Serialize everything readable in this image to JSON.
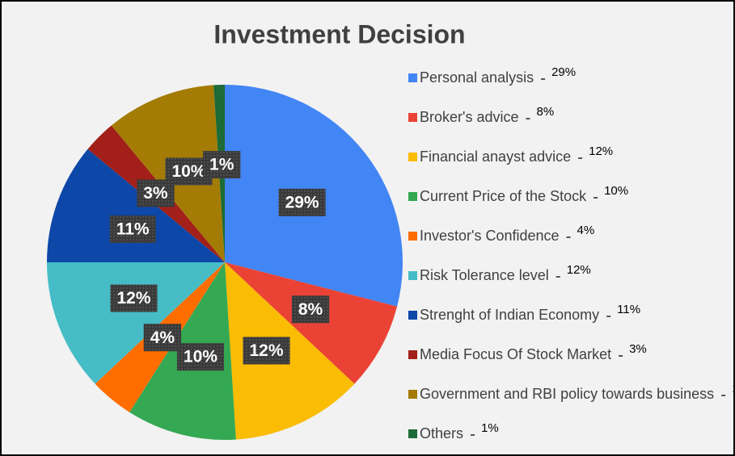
{
  "chart_data": {
    "type": "pie",
    "title": "Investment Decision",
    "categories": [
      "Personal analysis",
      "Broker's advice",
      "Financial anayst advice",
      "Current Price of the Stock",
      "Investor's Confidence",
      "Risk Tolerance level",
      "Strenght of Indian Economy",
      "Media Focus Of Stock Market",
      "Government and RBI policy towards business",
      "Others"
    ],
    "values": [
      29,
      8,
      12,
      10,
      4,
      12,
      11,
      3,
      10,
      1
    ],
    "value_labels": [
      "29%",
      "8%",
      "12%",
      "10%",
      "4%",
      "12%",
      "11%",
      "3%",
      "10%",
      "1%"
    ],
    "colors": [
      "#4285f4",
      "#ea4335",
      "#fbbc04",
      "#34a853",
      "#ff6d01",
      "#46bdc6",
      "#0d47a8",
      "#a21f1a",
      "#a47c05",
      "#1d6b36"
    ],
    "legend": "right"
  }
}
